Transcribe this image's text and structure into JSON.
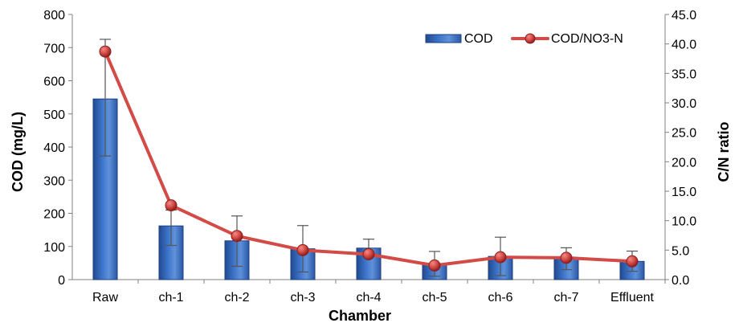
{
  "chart_data": {
    "type": "bar",
    "categories": [
      "Raw",
      "ch-1",
      "ch-2",
      "ch-3",
      "ch-4",
      "ch-5",
      "ch-6",
      "ch-7",
      "Effluent"
    ],
    "series": [
      {
        "name": "COD",
        "type": "bar",
        "axis": "left",
        "values": [
          545,
          162,
          117,
          93,
          95,
          45,
          70,
          62,
          55
        ],
        "error_upper": [
          725,
          210,
          192,
          163,
          122,
          85,
          128,
          96,
          86
        ],
        "error_lower": [
          373,
          103,
          40,
          23,
          70,
          10,
          12,
          30,
          25
        ],
        "color": "#3b72c8"
      },
      {
        "name": "COD/NO3-N",
        "type": "line",
        "axis": "right",
        "values": [
          38.7,
          12.6,
          7.4,
          5.0,
          4.3,
          2.4,
          3.8,
          3.7,
          3.1
        ],
        "color": "#d24b47"
      }
    ],
    "xlabel": "Chamber",
    "ylabel": "COD (mg/L)",
    "y2label": "C/N ratio",
    "ylim": [
      0,
      800
    ],
    "y2lim": [
      0,
      45
    ],
    "yticks": [
      "0",
      "100",
      "200",
      "300",
      "400",
      "500",
      "600",
      "700",
      "800"
    ],
    "y2ticks": [
      "0.0",
      "5.0",
      "10.0",
      "15.0",
      "20.0",
      "25.0",
      "30.0",
      "35.0",
      "40.0",
      "45.0"
    ],
    "grid": false,
    "legend": "top-right",
    "legend_items": [
      "COD",
      "COD/NO3-N"
    ]
  }
}
